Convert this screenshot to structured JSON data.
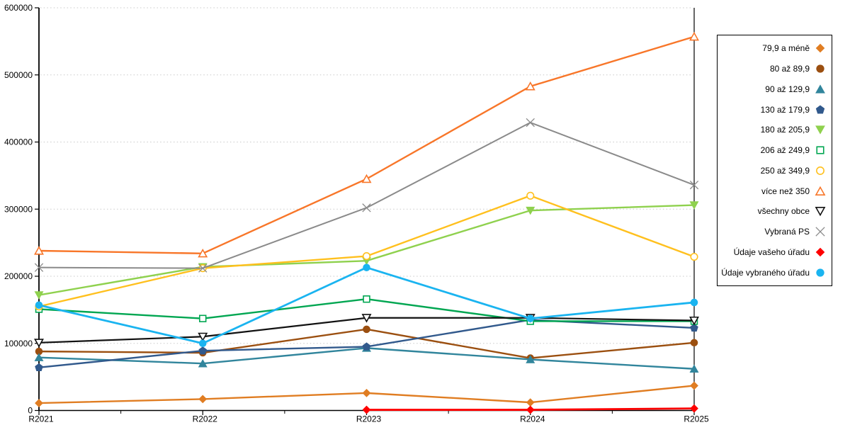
{
  "chart_data": {
    "type": "line",
    "title": "",
    "xlabel": "",
    "ylabel": "",
    "categories": [
      "R2021",
      "R2022",
      "R2023",
      "R2024",
      "R2025"
    ],
    "y_tick_labels": [
      "0",
      "100000",
      "200000",
      "300000",
      "400000",
      "500000",
      "600000"
    ],
    "ylim": [
      0,
      600000
    ],
    "ytick_step": 100000,
    "grid": "horizontal-dotted",
    "legend_position": "right",
    "series": [
      {
        "name": "79,9 a méně",
        "marker": "diamond",
        "style": "solid",
        "color": "#E07D22",
        "width": 2.4,
        "values": [
          11000,
          17000,
          26000,
          12000,
          37000
        ]
      },
      {
        "name": "80 až 89,9",
        "marker": "circle",
        "style": "solid",
        "color": "#9B4F10",
        "width": 2.4,
        "values": [
          88000,
          86000,
          121000,
          78000,
          101000
        ]
      },
      {
        "name": "90 až 129,9",
        "marker": "triangle-up",
        "style": "solid",
        "color": "#31859C",
        "width": 2.4,
        "values": [
          79000,
          70000,
          93000,
          76000,
          62000
        ]
      },
      {
        "name": "130 až 179,9",
        "marker": "pentagon",
        "style": "solid",
        "color": "#31598C",
        "width": 2.4,
        "values": [
          64000,
          89000,
          95000,
          135000,
          123000
        ]
      },
      {
        "name": "180 až 205,9",
        "marker": "triangle-down",
        "style": "solid",
        "color": "#8FD14E",
        "width": 2.4,
        "values": [
          172000,
          214000,
          223000,
          298000,
          306000
        ]
      },
      {
        "name": "206 až 249,9",
        "marker": "square",
        "style": "open",
        "color": "#00A651",
        "width": 2.4,
        "values": [
          151000,
          137000,
          166000,
          133000,
          133000
        ]
      },
      {
        "name": "250 až 349,9",
        "marker": "circle",
        "style": "open",
        "color": "#FFC01E",
        "width": 2.4,
        "values": [
          155000,
          212000,
          230000,
          320000,
          229000
        ]
      },
      {
        "name": "více než 350",
        "marker": "triangle-up",
        "style": "open",
        "color": "#F87629",
        "width": 2.4,
        "values": [
          238000,
          234000,
          345000,
          483000,
          557000
        ]
      },
      {
        "name": "všechny obce",
        "marker": "triangle-down",
        "style": "open",
        "color": "#111111",
        "width": 2.2,
        "values": [
          101000,
          110000,
          138000,
          138000,
          134000
        ]
      },
      {
        "name": "Vybraná PS",
        "marker": "x",
        "style": "open",
        "color": "#8A8A8A",
        "width": 2.0,
        "values": [
          213000,
          212000,
          302000,
          429000,
          336000
        ]
      },
      {
        "name": "Údaje vašeho úřadu",
        "marker": "diamond",
        "style": "solid",
        "color": "#FE0000",
        "width": 2.8,
        "values": [
          null,
          null,
          1000,
          1000,
          3000
        ]
      },
      {
        "name": "Údaje vybraného úřadu",
        "marker": "circle",
        "style": "solid",
        "color": "#1AB4F0",
        "width": 2.8,
        "values": [
          157000,
          100000,
          213000,
          137000,
          161000
        ]
      }
    ]
  }
}
